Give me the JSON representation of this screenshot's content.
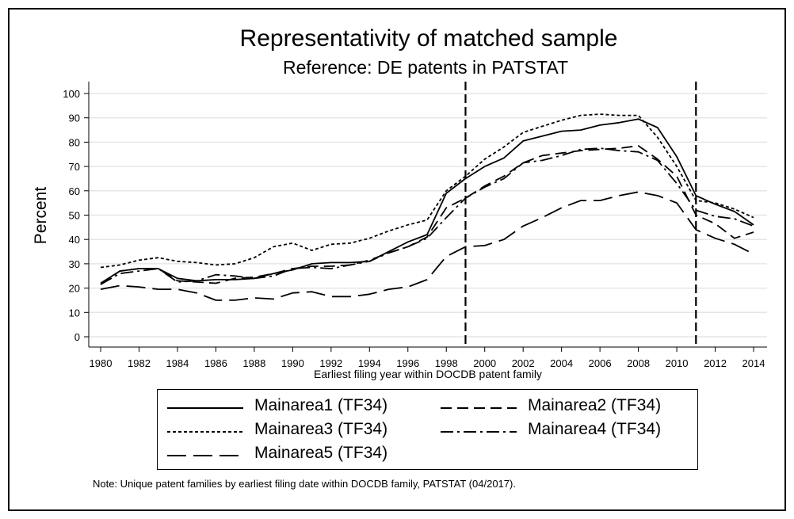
{
  "chart_data": {
    "type": "line",
    "title": "Representativity of matched sample",
    "subtitle": "Reference: DE patents in PATSTAT",
    "xlabel": "Earliest filing year within DOCDB patent family",
    "ylabel": "Percent",
    "xlim": [
      1980,
      2014
    ],
    "ylim": [
      0,
      100
    ],
    "x_ticks": [
      1980,
      1982,
      1984,
      1986,
      1988,
      1990,
      1992,
      1994,
      1996,
      1998,
      2000,
      2002,
      2004,
      2006,
      2008,
      2010,
      2012,
      2014
    ],
    "y_ticks": [
      0,
      10,
      20,
      30,
      40,
      50,
      60,
      70,
      80,
      90,
      100
    ],
    "grid": true,
    "vlines": [
      1999,
      2011
    ],
    "x": [
      1980,
      1981,
      1982,
      1983,
      1984,
      1985,
      1986,
      1987,
      1988,
      1989,
      1990,
      1991,
      1992,
      1993,
      1994,
      1995,
      1996,
      1997,
      1998,
      1999,
      2000,
      2001,
      2002,
      2003,
      2004,
      2005,
      2006,
      2007,
      2008,
      2009,
      2010,
      2011,
      2012,
      2013,
      2014
    ],
    "series": [
      {
        "name": "Mainarea1 (TF34)",
        "style": "solid",
        "values": [
          22,
          27,
          28,
          28,
          24,
          23,
          23.5,
          23.5,
          24,
          26,
          27.5,
          30,
          30.5,
          30.5,
          31,
          35,
          39,
          42,
          59,
          65,
          70,
          73.5,
          80.5,
          82.5,
          84.5,
          85,
          87,
          88,
          89.5,
          86,
          74,
          58,
          54.5,
          51.5,
          46
        ]
      },
      {
        "name": "Mainarea2 (TF34)",
        "style": "dashed",
        "values": [
          21.5,
          27,
          28,
          28,
          23,
          22.5,
          22,
          24,
          24.5,
          26,
          28,
          29,
          29,
          29.5,
          31.5,
          34.5,
          37,
          41,
          53,
          57,
          62,
          66,
          71.5,
          74.5,
          75.5,
          76.5,
          77,
          77.5,
          78.5,
          73,
          66,
          50,
          46.5,
          40.5,
          43
        ]
      },
      {
        "name": "Mainarea3 (TF34)",
        "style": "dotted",
        "values": [
          28.5,
          29.5,
          31.5,
          32.5,
          31,
          30.5,
          29.5,
          30,
          32.5,
          37,
          38.5,
          35.5,
          38,
          38.5,
          40.5,
          43.5,
          46,
          48,
          60,
          66,
          73,
          78,
          84,
          86.5,
          89,
          91,
          91.5,
          91,
          91,
          82,
          70,
          56,
          55,
          52.5,
          49
        ]
      },
      {
        "name": "Mainarea4 (TF34)",
        "style": "dashdot",
        "values": [
          21.5,
          26,
          27,
          28,
          22.5,
          23,
          25.5,
          25,
          24,
          25,
          28,
          28.5,
          28,
          29.5,
          31,
          34.5,
          37,
          40.5,
          49,
          57,
          61.5,
          65,
          71.5,
          72.5,
          74.5,
          77,
          77.5,
          76.5,
          76,
          72.5,
          63,
          52,
          49.5,
          48.5,
          45.5
        ]
      },
      {
        "name": "Mainarea5 (TF34)",
        "style": "longdash",
        "values": [
          19.5,
          21,
          20.5,
          19.5,
          19.5,
          18,
          15,
          15,
          16,
          15.5,
          18,
          18.5,
          16.5,
          16.5,
          17.5,
          19.5,
          20.5,
          23.5,
          33,
          37,
          37.5,
          40,
          45.5,
          49,
          53,
          56,
          56,
          58,
          59.5,
          58,
          55,
          44,
          40.5,
          38,
          34
        ]
      }
    ]
  },
  "legend": [
    {
      "label": "Mainarea1 (TF34)"
    },
    {
      "label": "Mainarea2 (TF34)"
    },
    {
      "label": "Mainarea3 (TF34)"
    },
    {
      "label": "Mainarea4 (TF34)"
    },
    {
      "label": "Mainarea5 (TF34)"
    }
  ],
  "note": "Note: Unique patent families by earliest filing date within DOCDB family, PATSTAT (04/2017).",
  "colors": {
    "line": "#000000",
    "grid": "#e6e6e6",
    "plot_bg": "#ffffff"
  }
}
